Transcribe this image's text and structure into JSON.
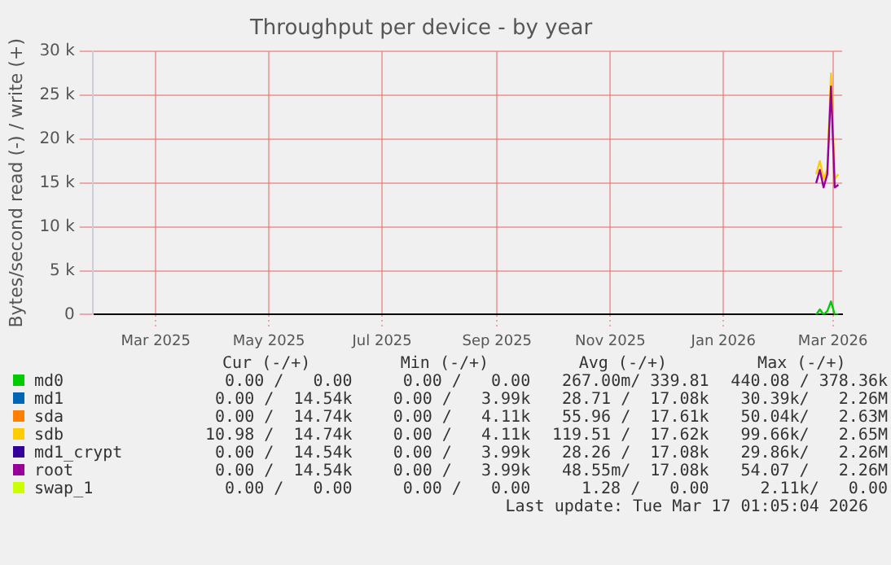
{
  "chart_data": {
    "type": "line",
    "title": "Throughput per device - by year",
    "ylabel": "Bytes/second read (-) / write (+)",
    "xlim": [
      "2025-01-26",
      "2026-03-06"
    ],
    "xticks": [
      {
        "value": "2025-03-01",
        "label": "Mar 2025"
      },
      {
        "value": "2025-05-01",
        "label": "May 2025"
      },
      {
        "value": "2025-07-01",
        "label": "Jul 2025"
      },
      {
        "value": "2025-09-01",
        "label": "Sep 2025"
      },
      {
        "value": "2025-11-01",
        "label": "Nov 2025"
      },
      {
        "value": "2026-01-01",
        "label": "Jan 2026"
      },
      {
        "value": "2026-03-01",
        "label": "Mar 2026"
      }
    ],
    "ylim": [
      0,
      30000
    ],
    "yticks": [
      {
        "value": 0,
        "label": "0"
      },
      {
        "value": 5000,
        "label": "5 k"
      },
      {
        "value": 10000,
        "label": "10 k"
      },
      {
        "value": 15000,
        "label": "15 k"
      },
      {
        "value": 20000,
        "label": "20 k"
      },
      {
        "value": 25000,
        "label": "25 k"
      },
      {
        "value": 30000,
        "label": "30 k"
      }
    ],
    "x": [
      "2026-02-20",
      "2026-02-22",
      "2026-02-24",
      "2026-02-26",
      "2026-02-28",
      "2026-03-02",
      "2026-03-04"
    ],
    "series": [
      {
        "name": "md0",
        "color": "#00cc00",
        "values": [
          0,
          600,
          0,
          400,
          1500,
          0,
          0
        ]
      },
      {
        "name": "md1",
        "color": "#0066b3",
        "values": [
          null,
          null,
          null,
          null,
          null,
          null,
          null
        ]
      },
      {
        "name": "sda",
        "color": "#ff8000",
        "values": [
          null,
          null,
          null,
          null,
          null,
          null,
          null
        ]
      },
      {
        "name": "sdb",
        "color": "#ffcc00",
        "values": [
          16000,
          17500,
          15500,
          16500,
          27500,
          15500,
          16000
        ]
      },
      {
        "name": "md1_crypt",
        "color": "#330099",
        "values": [
          null,
          null,
          null,
          null,
          null,
          null,
          null
        ]
      },
      {
        "name": "root",
        "color": "#990099",
        "values": [
          15000,
          16500,
          14500,
          16000,
          26000,
          14500,
          14800
        ]
      },
      {
        "name": "swap_1",
        "color": "#ccff00",
        "values": [
          null,
          null,
          null,
          null,
          null,
          null,
          null
        ]
      }
    ],
    "grid": true,
    "legend": "bottom",
    "annotations": [
      "Cur (-/+)",
      "Min (-/+)",
      "Avg (-/+)",
      "Max (-/+)",
      "0.00 /   0.00",
      "0.00 /   0.00",
      "267.00m/ 339.81",
      "440.08 / 378.36k",
      "0.00 /  14.54k",
      "0.00 /   3.99k",
      "28.71 /  17.08k",
      "30.39k/   2.26M",
      "0.00 /  14.74k",
      "0.00 /   4.11k",
      "55.96 /  17.61k",
      "50.04k/   2.63M",
      "10.98 /  14.74k",
      "0.00 /   4.11k",
      "119.51 /  17.62k",
      "99.66k/   2.65M",
      "0.00 /  14.54k",
      "0.00 /   3.99k",
      "28.26 /  17.08k",
      "29.86k/   2.26M",
      "0.00 /  14.54k",
      "0.00 /   3.99k",
      "48.55m/  17.08k",
      "54.07 /   2.26M",
      "0.00 /   0.00",
      "0.00 /   0.00",
      "1.28 /   0.00",
      "2.11k/   0.00",
      "Last update: Tue Mar 17 01:05:04 2026"
    ]
  }
}
